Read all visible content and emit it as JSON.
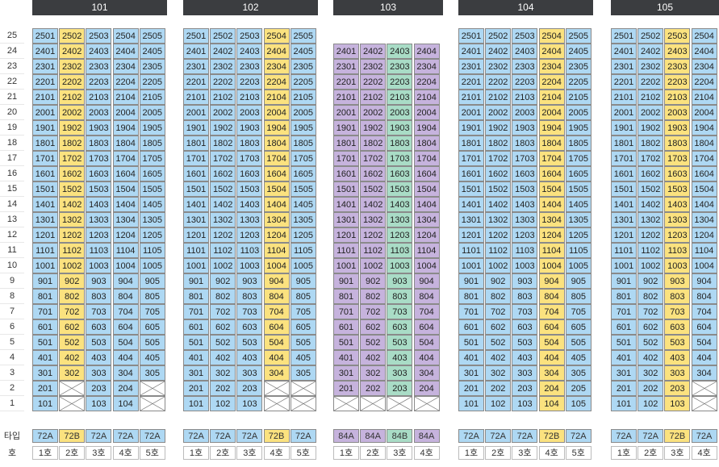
{
  "floor_labels": [
    "25",
    "24",
    "23",
    "22",
    "21",
    "20",
    "19",
    "18",
    "17",
    "16",
    "15",
    "14",
    "13",
    "12",
    "11",
    "10",
    "9",
    "8",
    "7",
    "6",
    "5",
    "4",
    "3",
    "2",
    "1"
  ],
  "footer": {
    "type_label": "타입",
    "unit_label": "호"
  },
  "colors": {
    "header": "#3b3d40",
    "blue": "#aed8f3",
    "yellow": "#fbe27f",
    "purple": "#c6b3dd",
    "green": "#a9dcc6"
  },
  "buildings": [
    {
      "name": "101",
      "cols": 5,
      "top_floor": 25,
      "color_cols": [
        "blue",
        "yellow",
        "blue",
        "blue",
        "blue"
      ],
      "missing": {
        "2": [
          2,
          5
        ],
        "1": [
          2,
          5
        ]
      },
      "types": [
        "72A",
        "72B",
        "72A",
        "72A",
        "72A"
      ],
      "units": [
        "1호",
        "2호",
        "3호",
        "4호",
        "5호"
      ],
      "type_colors": [
        "blue",
        "yellow",
        "blue",
        "blue",
        "blue"
      ]
    },
    {
      "name": "102",
      "cols": 5,
      "top_floor": 25,
      "color_cols": [
        "blue",
        "blue",
        "blue",
        "yellow",
        "blue"
      ],
      "missing": {
        "2": [
          4,
          5
        ],
        "1": [
          4,
          5
        ]
      },
      "types": [
        "72A",
        "72A",
        "72A",
        "72B",
        "72A"
      ],
      "units": [
        "1호",
        "2호",
        "3호",
        "4호",
        "5호"
      ],
      "type_colors": [
        "blue",
        "blue",
        "blue",
        "yellow",
        "blue"
      ]
    },
    {
      "name": "103",
      "cols": 4,
      "top_floor": 24,
      "color_cols": [
        "purple",
        "purple",
        "green",
        "purple"
      ],
      "missing": {
        "1": [
          1,
          2,
          3,
          4
        ]
      },
      "types": [
        "84A",
        "84A",
        "84B",
        "84A"
      ],
      "units": [
        "1호",
        "2호",
        "3호",
        "4호"
      ],
      "type_colors": [
        "purple",
        "purple",
        "green",
        "purple"
      ]
    },
    {
      "name": "104",
      "cols": 5,
      "top_floor": 25,
      "color_cols": [
        "blue",
        "blue",
        "blue",
        "yellow",
        "blue"
      ],
      "missing": {},
      "types": [
        "72A",
        "72A",
        "72A",
        "72B",
        "72A"
      ],
      "units": [
        "1호",
        "2호",
        "3호",
        "4호",
        "5호"
      ],
      "type_colors": [
        "blue",
        "blue",
        "blue",
        "yellow",
        "blue"
      ]
    },
    {
      "name": "105",
      "cols": 4,
      "top_floor": 25,
      "color_cols": [
        "blue",
        "blue",
        "yellow",
        "blue"
      ],
      "missing": {
        "2": [
          4
        ],
        "1": [
          4
        ]
      },
      "types": [
        "72A",
        "72A",
        "72B",
        "72A"
      ],
      "units": [
        "1호",
        "2호",
        "3호",
        "4호"
      ],
      "type_colors": [
        "blue",
        "blue",
        "yellow",
        "blue"
      ]
    }
  ]
}
